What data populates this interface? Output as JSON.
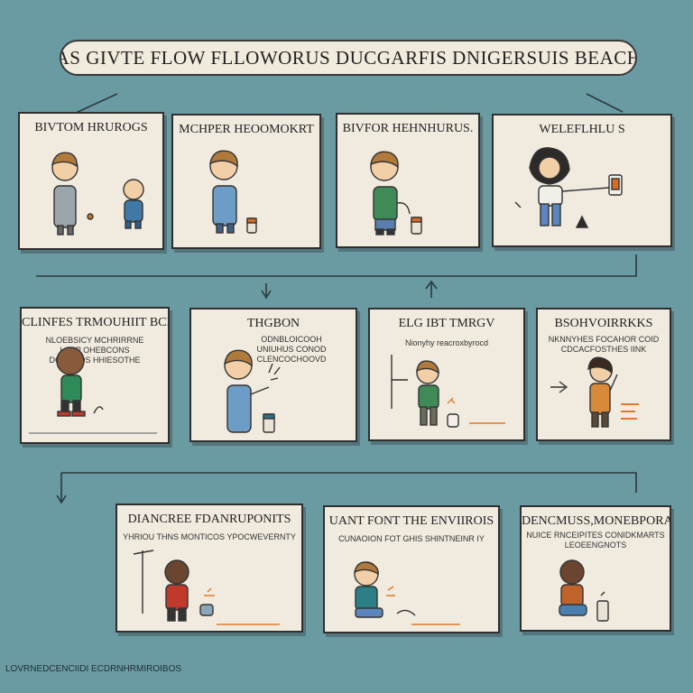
{
  "banner": "PLEAS GIVTE FLOW FLLOWORUS DUCGARFIS DNIGERSUIS BEACHRTS",
  "panels": [
    {
      "title": "BIVTOM HRUROGS",
      "sub": ""
    },
    {
      "title": "MCHPER HEOOMOKRT",
      "sub": ""
    },
    {
      "title": "BIVFOR HEHNHURUS.",
      "sub": ""
    },
    {
      "title": "WELEFLHLU S",
      "sub": ""
    },
    {
      "title": "CLINFES TRMOUHIIT BCDO",
      "sub": "NLOEBSICY MCHRIRRNE\nLACP OHEBCONS\nDONAGOS HHIESOTHE"
    },
    {
      "title": "THGBON",
      "sub": "ODNBLOICOOH\nUNIUHUS CONOD\nCLENCOCHOOVD"
    },
    {
      "title": "ELG IBT TMRGV",
      "sub": "Nionyhy reacroxbyrocd"
    },
    {
      "title": "BSOHVOIRRKKS",
      "sub": "NKNNYHES FOCAHOR COID\nCDCACFOSTHES IINK"
    },
    {
      "title": "DIANCREE FDANRUPONITS",
      "sub": "YHRIOU THNS MONTICOS YPOCWEVERNTY"
    },
    {
      "title": "UANT FONT THE ENVIIROIS",
      "sub": "CUNAOION FOT GHIS SHINTNEINR IY"
    },
    {
      "title": "DENCMUSS,MONEBPORATE",
      "sub": "NUICE RNCEIPITES CONIDKMARTS\nLEOEENGNOTS"
    }
  ],
  "footer": "LOVRNEDCENCIIDI ECDRNHRMIROIBOS",
  "colors": {
    "background": "#6a9aa2",
    "panel": "#f0ebde",
    "outline": "#2f2f2f"
  }
}
